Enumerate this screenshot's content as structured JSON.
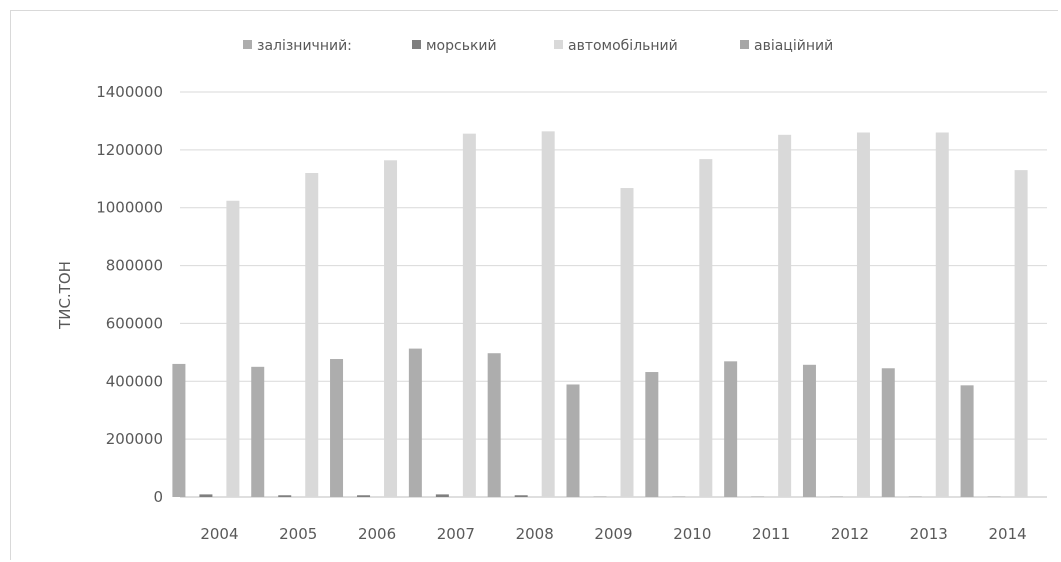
{
  "chart_data": {
    "type": "bar",
    "title": "",
    "xlabel": "",
    "ylabel": "ТИС.ТОН",
    "ylim": [
      0,
      1400000
    ],
    "yticks": [
      0,
      200000,
      400000,
      600000,
      800000,
      1000000,
      1200000,
      1400000
    ],
    "ytick_labels": [
      "0",
      "200000",
      "400000",
      "600000",
      "800000",
      "1000000",
      "1200000",
      "1400000"
    ],
    "grid": true,
    "legend_position": "top",
    "categories": [
      "2004",
      "2005",
      "2006",
      "2007",
      "2008",
      "2009",
      "2010",
      "2011",
      "2012",
      "2013",
      "2014"
    ],
    "series": [
      {
        "name": "залізничний:",
        "color": "#adadad",
        "values": [
          460000,
          450000,
          477000,
          513000,
          497000,
          389000,
          432000,
          469000,
          457000,
          445000,
          386000
        ]
      },
      {
        "name": "морський",
        "color": "#7f7f7f",
        "values": [
          9000,
          6000,
          6000,
          9000,
          6000,
          1000,
          1000,
          1000,
          1000,
          1000,
          1000
        ]
      },
      {
        "name": "автомобільний",
        "color": "#d9d9d9",
        "values": [
          1024000,
          1120000,
          1164000,
          1256000,
          1264000,
          1068000,
          1168000,
          1252000,
          1260000,
          1260000,
          1130000
        ]
      },
      {
        "name": "авіаційний",
        "color": "#a6a6a6",
        "values": [
          0,
          0,
          0,
          0,
          0,
          0,
          0,
          0,
          0,
          0,
          0
        ]
      }
    ]
  }
}
